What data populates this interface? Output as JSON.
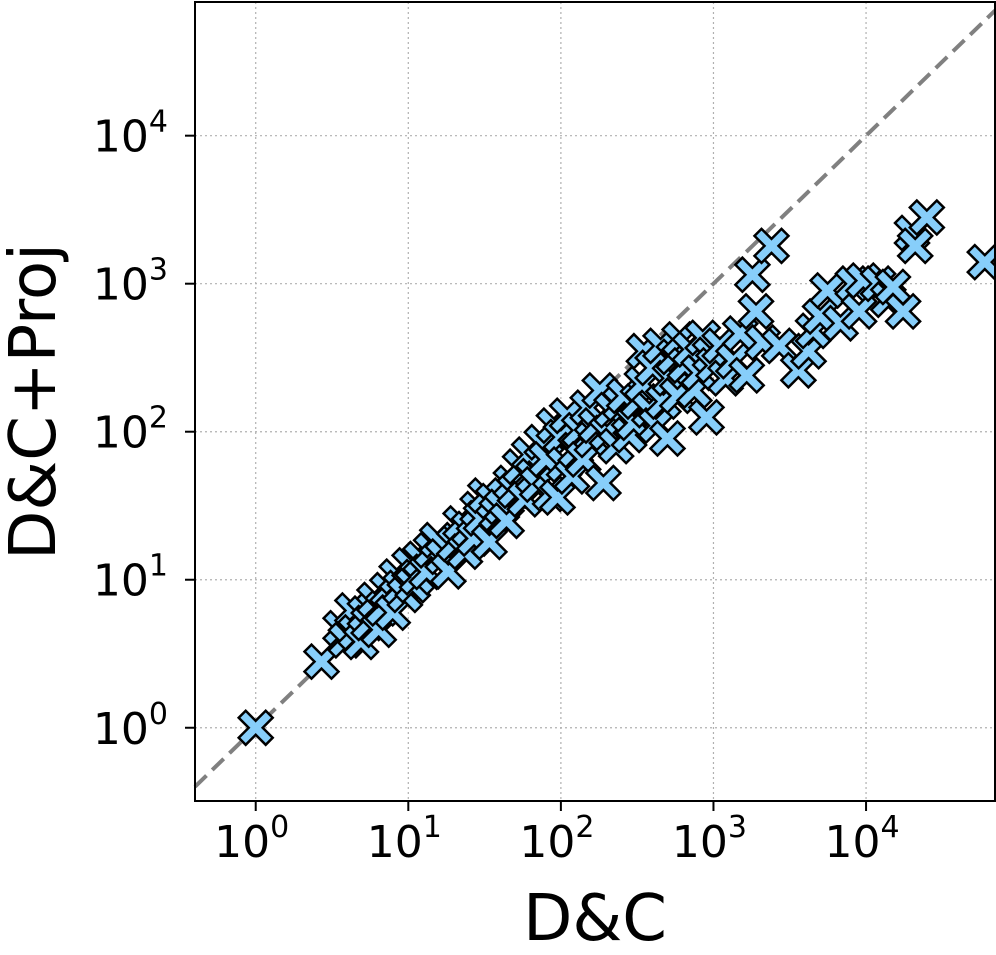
{
  "chart_data": {
    "type": "scatter",
    "title": "",
    "xlabel": "D&C",
    "ylabel": "D&C+Proj",
    "xscale": "log",
    "yscale": "log",
    "xlim": [
      0.4,
      70000
    ],
    "ylim": [
      0.32,
      80000
    ],
    "grid": true,
    "reference_line": "y = x (dashed gray)",
    "marker": "X",
    "marker_color": "#87CEFA",
    "marker_edge_color": "#000000",
    "x_ticks": [
      {
        "base": "10",
        "exp": "0"
      },
      {
        "base": "10",
        "exp": "1"
      },
      {
        "base": "10",
        "exp": "2"
      },
      {
        "base": "10",
        "exp": "3"
      },
      {
        "base": "10",
        "exp": "4"
      }
    ],
    "y_ticks": [
      {
        "base": "10",
        "exp": "0"
      },
      {
        "base": "10",
        "exp": "1"
      },
      {
        "base": "10",
        "exp": "2"
      },
      {
        "base": "10",
        "exp": "3"
      },
      {
        "base": "10",
        "exp": "4"
      }
    ],
    "points": [
      [
        1.0,
        1.0
      ],
      [
        2.7,
        2.8
      ],
      [
        3.6,
        4.7
      ],
      [
        3.9,
        3.9
      ],
      [
        4.3,
        6.2
      ],
      [
        4.5,
        4.4
      ],
      [
        4.9,
        3.8
      ],
      [
        5.2,
        5.9
      ],
      [
        5.5,
        5.1
      ],
      [
        6.0,
        7.3
      ],
      [
        6.4,
        4.6
      ],
      [
        6.8,
        6.4
      ],
      [
        7.3,
        8.5
      ],
      [
        7.9,
        6.0
      ],
      [
        8.4,
        10.5
      ],
      [
        8.9,
        8.8
      ],
      [
        9.5,
        7.9
      ],
      [
        10.2,
        12.5
      ],
      [
        10.7,
        9.2
      ],
      [
        11.4,
        10.4
      ],
      [
        12.0,
        13.8
      ],
      [
        13.2,
        11.3
      ],
      [
        14.1,
        15.8
      ],
      [
        15.5,
        18.5
      ],
      [
        16.8,
        14.3
      ],
      [
        18.3,
        11.4
      ],
      [
        20.0,
        17.5
      ],
      [
        22.0,
        24.0
      ],
      [
        23.5,
        15.5
      ],
      [
        25.0,
        22.0
      ],
      [
        27.0,
        19.0
      ],
      [
        28.5,
        30.0
      ],
      [
        30.0,
        26.0
      ],
      [
        32.0,
        37.0
      ],
      [
        34.0,
        18.0
      ],
      [
        36.0,
        34.0
      ],
      [
        38.0,
        28.0
      ],
      [
        41.0,
        31.0
      ],
      [
        44.0,
        25.0
      ],
      [
        47.0,
        45.0
      ],
      [
        50.0,
        40.0
      ],
      [
        54.0,
        58.0
      ],
      [
        58.0,
        35.0
      ],
      [
        62.0,
        70.0
      ],
      [
        66.0,
        50.0
      ],
      [
        70.0,
        44.0
      ],
      [
        75.0,
        85.0
      ],
      [
        80.0,
        65.0
      ],
      [
        85.0,
        38.0
      ],
      [
        90.0,
        110.0
      ],
      [
        95.0,
        36.0
      ],
      [
        100.0,
        92.0
      ],
      [
        105.0,
        60.0
      ],
      [
        110.0,
        128.0
      ],
      [
        118.0,
        50.0
      ],
      [
        125.0,
        75.0
      ],
      [
        132.0,
        102.0
      ],
      [
        140.0,
        65.0
      ],
      [
        150.0,
        145.0
      ],
      [
        160.0,
        88.0
      ],
      [
        170.0,
        110.0
      ],
      [
        180.0,
        190.0
      ],
      [
        190.0,
        45.0
      ],
      [
        200.0,
        98.0
      ],
      [
        215.0,
        140.0
      ],
      [
        230.0,
        80.0
      ],
      [
        245.0,
        155.0
      ],
      [
        260.0,
        175.0
      ],
      [
        280.0,
        95.0
      ],
      [
        300.0,
        115.0
      ],
      [
        320.0,
        160.0
      ],
      [
        340.0,
        210.0
      ],
      [
        350.0,
        350.0
      ],
      [
        380.0,
        140.0
      ],
      [
        400.0,
        270.0
      ],
      [
        420.0,
        110.0
      ],
      [
        450.0,
        380.0
      ],
      [
        470.0,
        160.0
      ],
      [
        500.0,
        90.0
      ],
      [
        520.0,
        230.0
      ],
      [
        550.0,
        320.0
      ],
      [
        580.0,
        175.0
      ],
      [
        600.0,
        420.0
      ],
      [
        650.0,
        280.0
      ],
      [
        700.0,
        360.0
      ],
      [
        750.0,
        190.0
      ],
      [
        800.0,
        250.0
      ],
      [
        850.0,
        430.0
      ],
      [
        900.0,
        125.0
      ],
      [
        950.0,
        330.0
      ],
      [
        1000.0,
        280.0
      ],
      [
        1100.0,
        380.0
      ],
      [
        1200.0,
        230.0
      ],
      [
        1350.0,
        300.0
      ],
      [
        1500.0,
        460.0
      ],
      [
        1650.0,
        240.0
      ],
      [
        1800.0,
        1150.0
      ],
      [
        1900.0,
        650.0
      ],
      [
        2100.0,
        400.0
      ],
      [
        2400.0,
        1800.0
      ],
      [
        2700.0,
        380.0
      ],
      [
        3600.0,
        260.0
      ],
      [
        4200.0,
        350.0
      ],
      [
        4500.0,
        480.0
      ],
      [
        5000.0,
        600.0
      ],
      [
        5600.0,
        900.0
      ],
      [
        6800.0,
        540.0
      ],
      [
        8200.0,
        1000.0
      ],
      [
        9000.0,
        650.0
      ],
      [
        9600.0,
        1050.0
      ],
      [
        12000.0,
        1000.0
      ],
      [
        14000.0,
        780.0
      ],
      [
        15000.0,
        950.0
      ],
      [
        17500.0,
        650.0
      ],
      [
        20000.0,
        2200.0
      ],
      [
        21000.0,
        1800.0
      ],
      [
        25000.0,
        2800.0
      ],
      [
        60000.0,
        1400.0
      ]
    ]
  }
}
